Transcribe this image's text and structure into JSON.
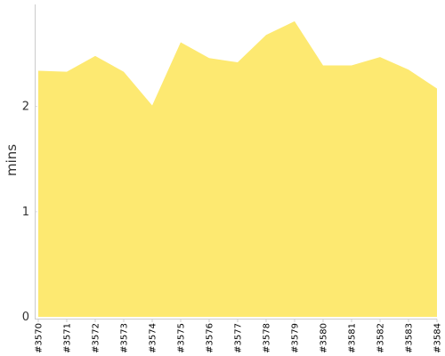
{
  "chart_data": {
    "type": "area",
    "title": "",
    "xlabel": "",
    "ylabel": "mins",
    "categories": [
      "#3570",
      "#3571",
      "#3572",
      "#3573",
      "#3574",
      "#3575",
      "#3576",
      "#3577",
      "#3578",
      "#3579",
      "#3580",
      "#3581",
      "#3582",
      "#3583",
      "#3584"
    ],
    "series": [
      {
        "values": [
          2.34,
          2.33,
          2.48,
          2.33,
          2.01,
          2.61,
          2.46,
          2.42,
          2.68,
          2.81,
          2.39,
          2.39,
          2.47,
          2.35,
          2.17
        ],
        "color": "#fde971"
      }
    ],
    "yticks": [
      0,
      1,
      2
    ],
    "ylim": [
      0,
      2.97
    ],
    "grid": true,
    "grid_color": "#dddddd",
    "axis_color": "#cccccc"
  }
}
